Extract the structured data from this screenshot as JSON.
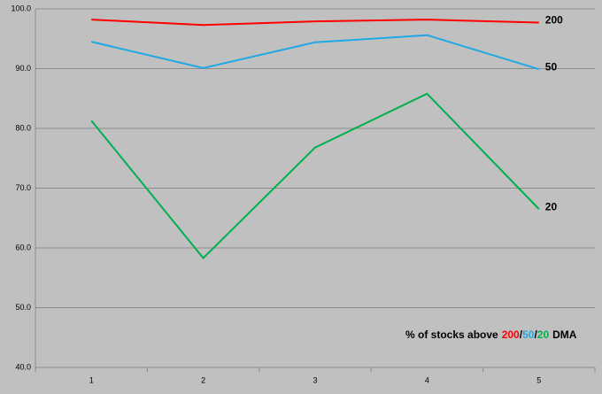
{
  "chart_data": {
    "type": "line",
    "categories": [
      "1",
      "2",
      "3",
      "4",
      "5"
    ],
    "series": [
      {
        "name": "200",
        "color": "#ff0000",
        "values": [
          98.2,
          97.3,
          97.9,
          98.2,
          97.7
        ]
      },
      {
        "name": "50",
        "color": "#1ea8e6",
        "values": [
          94.5,
          90.1,
          94.4,
          95.6,
          89.9
        ]
      },
      {
        "name": "20",
        "color": "#00b050",
        "values": [
          81.3,
          58.3,
          76.8,
          85.8,
          66.5
        ]
      }
    ],
    "ylim": [
      40,
      100
    ],
    "yticks": [
      {
        "value": 40,
        "label": "40.0"
      },
      {
        "value": 50,
        "label": "50.0"
      },
      {
        "value": 60,
        "label": "60.0"
      },
      {
        "value": 70,
        "label": "70.0"
      },
      {
        "value": 80,
        "label": "80.0"
      },
      {
        "value": 90,
        "label": "90.0"
      },
      {
        "value": 100,
        "label": "100.0"
      }
    ],
    "grid": true,
    "annotation": {
      "prefix": "% of stocks above",
      "separator": "/",
      "suffix": "DMA"
    }
  }
}
